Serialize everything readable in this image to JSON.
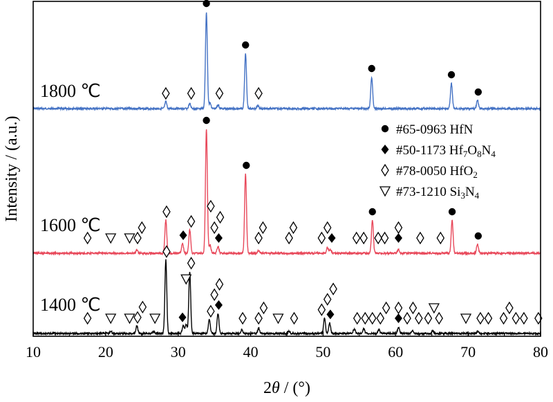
{
  "chart_data": {
    "type": "line",
    "xlabel_parts": [
      "2",
      "θ",
      " / (°)"
    ],
    "ylabel": "Intensity / (a.u.)",
    "xlim": [
      10,
      80
    ],
    "x_ticks": [
      10,
      20,
      30,
      40,
      50,
      60,
      70,
      80
    ],
    "grid": false,
    "legend_position": "right",
    "legend": [
      {
        "marker": "circle",
        "parts": [
          "#65-0963 HfN"
        ]
      },
      {
        "marker": "diamond-filled",
        "parts": [
          "#50-1173 Hf",
          "7",
          "O",
          "8",
          "N",
          "4"
        ]
      },
      {
        "marker": "diamond-open",
        "parts": [
          "#78-0050 HfO",
          "2"
        ]
      },
      {
        "marker": "triangle-down",
        "parts": [
          "#73-1210 Si",
          "3",
          "N",
          "4"
        ]
      }
    ],
    "series": [
      {
        "label": "1800 ℃",
        "color": "#4472c4",
        "baseline": 0,
        "peaks": [
          {
            "x": 28.3,
            "h": 10
          },
          {
            "x": 31.6,
            "h": 7
          },
          {
            "x": 33.9,
            "h": 140
          },
          {
            "x": 34.4,
            "h": 8
          },
          {
            "x": 35.5,
            "h": 5
          },
          {
            "x": 39.3,
            "h": 80
          },
          {
            "x": 41.0,
            "h": 4
          },
          {
            "x": 56.7,
            "h": 46
          },
          {
            "x": 67.7,
            "h": 37
          },
          {
            "x": 71.3,
            "h": 12
          }
        ],
        "markers": [
          {
            "x": 33.9,
            "type": "circle"
          },
          {
            "x": 39.3,
            "type": "circle"
          },
          {
            "x": 56.7,
            "type": "circle"
          },
          {
            "x": 67.7,
            "type": "circle"
          },
          {
            "x": 71.4,
            "type": "circle"
          },
          {
            "x": 28.3,
            "type": "diamond-open"
          },
          {
            "x": 31.8,
            "type": "diamond-open"
          },
          {
            "x": 35.7,
            "type": "diamond-open"
          },
          {
            "x": 41.1,
            "type": "diamond-open"
          }
        ]
      },
      {
        "label": "1600 ℃",
        "color": "#e8485a",
        "baseline": 0,
        "peaks": [
          {
            "x": 24.3,
            "h": 5
          },
          {
            "x": 28.3,
            "h": 48
          },
          {
            "x": 30.6,
            "h": 14
          },
          {
            "x": 31.6,
            "h": 34
          },
          {
            "x": 33.9,
            "h": 180
          },
          {
            "x": 34.4,
            "h": 12
          },
          {
            "x": 35.5,
            "h": 10
          },
          {
            "x": 39.3,
            "h": 115
          },
          {
            "x": 41.1,
            "h": 4
          },
          {
            "x": 50.6,
            "h": 8
          },
          {
            "x": 51.0,
            "h": 5
          },
          {
            "x": 56.8,
            "h": 48
          },
          {
            "x": 60.4,
            "h": 6
          },
          {
            "x": 67.8,
            "h": 48
          },
          {
            "x": 71.3,
            "h": 13
          }
        ],
        "markers": [
          {
            "x": 33.9,
            "type": "circle"
          },
          {
            "x": 39.4,
            "type": "circle"
          },
          {
            "x": 56.8,
            "type": "circle"
          },
          {
            "x": 67.8,
            "type": "circle"
          },
          {
            "x": 71.4,
            "type": "circle"
          },
          {
            "x": 30.7,
            "type": "diamond-filled"
          },
          {
            "x": 35.6,
            "type": "diamond-filled"
          },
          {
            "x": 51.2,
            "type": "diamond-filled"
          },
          {
            "x": 60.4,
            "type": "diamond-filled"
          },
          {
            "x": 17.5,
            "type": "diamond-open"
          },
          {
            "x": 24.4,
            "type": "diamond-open"
          },
          {
            "x": 25.0,
            "type": "diamond-open"
          },
          {
            "x": 28.4,
            "type": "diamond-open"
          },
          {
            "x": 31.8,
            "type": "diamond-open"
          },
          {
            "x": 34.5,
            "type": "diamond-open"
          },
          {
            "x": 35.0,
            "type": "diamond-open"
          },
          {
            "x": 35.8,
            "type": "diamond-open"
          },
          {
            "x": 41.1,
            "type": "diamond-open"
          },
          {
            "x": 41.7,
            "type": "diamond-open"
          },
          {
            "x": 45.3,
            "type": "diamond-open"
          },
          {
            "x": 45.9,
            "type": "diamond-open"
          },
          {
            "x": 49.8,
            "type": "diamond-open"
          },
          {
            "x": 50.6,
            "type": "diamond-open"
          },
          {
            "x": 54.6,
            "type": "diamond-open"
          },
          {
            "x": 55.6,
            "type": "diamond-open"
          },
          {
            "x": 57.6,
            "type": "diamond-open"
          },
          {
            "x": 58.5,
            "type": "diamond-open"
          },
          {
            "x": 60.4,
            "type": "diamond-open"
          },
          {
            "x": 63.4,
            "type": "diamond-open"
          },
          {
            "x": 66.2,
            "type": "diamond-open"
          },
          {
            "x": 20.7,
            "type": "triangle-down"
          },
          {
            "x": 23.3,
            "type": "triangle-down"
          }
        ]
      },
      {
        "label": "1400 ℃",
        "color": "#000000",
        "baseline": 0,
        "peaks": [
          {
            "x": 20.7,
            "h": 3
          },
          {
            "x": 24.3,
            "h": 10
          },
          {
            "x": 26.6,
            "h": 3
          },
          {
            "x": 28.3,
            "h": 95
          },
          {
            "x": 30.7,
            "h": 10
          },
          {
            "x": 31.1,
            "h": 12
          },
          {
            "x": 31.6,
            "h": 80
          },
          {
            "x": 34.3,
            "h": 18
          },
          {
            "x": 35.5,
            "h": 26
          },
          {
            "x": 38.8,
            "h": 5
          },
          {
            "x": 41.1,
            "h": 7
          },
          {
            "x": 45.3,
            "h": 3
          },
          {
            "x": 50.2,
            "h": 20
          },
          {
            "x": 50.9,
            "h": 14
          },
          {
            "x": 54.3,
            "h": 6
          },
          {
            "x": 55.6,
            "h": 6
          },
          {
            "x": 57.7,
            "h": 5
          },
          {
            "x": 60.4,
            "h": 8
          },
          {
            "x": 62.3,
            "h": 4
          },
          {
            "x": 65.1,
            "h": 3
          },
          {
            "x": 71.3,
            "h": 3
          }
        ],
        "markers": [
          {
            "x": 30.6,
            "type": "diamond-filled"
          },
          {
            "x": 35.6,
            "type": "diamond-filled"
          },
          {
            "x": 51.0,
            "type": "diamond-filled"
          },
          {
            "x": 60.4,
            "type": "diamond-filled"
          },
          {
            "x": 17.5,
            "type": "diamond-open"
          },
          {
            "x": 24.4,
            "type": "diamond-open"
          },
          {
            "x": 25.1,
            "type": "diamond-open"
          },
          {
            "x": 28.4,
            "type": "diamond-open"
          },
          {
            "x": 31.8,
            "type": "diamond-open"
          },
          {
            "x": 34.5,
            "type": "diamond-open"
          },
          {
            "x": 35.0,
            "type": "diamond-open"
          },
          {
            "x": 35.7,
            "type": "diamond-open"
          },
          {
            "x": 38.9,
            "type": "diamond-open"
          },
          {
            "x": 41.1,
            "type": "diamond-open"
          },
          {
            "x": 41.8,
            "type": "diamond-open"
          },
          {
            "x": 46.0,
            "type": "diamond-open"
          },
          {
            "x": 49.8,
            "type": "diamond-open"
          },
          {
            "x": 50.6,
            "type": "diamond-open"
          },
          {
            "x": 51.4,
            "type": "diamond-open"
          },
          {
            "x": 54.7,
            "type": "diamond-open"
          },
          {
            "x": 55.8,
            "type": "diamond-open"
          },
          {
            "x": 56.8,
            "type": "diamond-open"
          },
          {
            "x": 57.9,
            "type": "diamond-open"
          },
          {
            "x": 58.7,
            "type": "diamond-open"
          },
          {
            "x": 60.4,
            "type": "diamond-open"
          },
          {
            "x": 61.6,
            "type": "diamond-open"
          },
          {
            "x": 62.4,
            "type": "diamond-open"
          },
          {
            "x": 63.2,
            "type": "diamond-open"
          },
          {
            "x": 64.5,
            "type": "diamond-open"
          },
          {
            "x": 66.0,
            "type": "diamond-open"
          },
          {
            "x": 71.7,
            "type": "diamond-open"
          },
          {
            "x": 72.8,
            "type": "diamond-open"
          },
          {
            "x": 74.9,
            "type": "diamond-open"
          },
          {
            "x": 75.7,
            "type": "diamond-open"
          },
          {
            "x": 76.6,
            "type": "diamond-open"
          },
          {
            "x": 77.7,
            "type": "diamond-open"
          },
          {
            "x": 79.7,
            "type": "diamond-open"
          },
          {
            "x": 20.7,
            "type": "triangle-down"
          },
          {
            "x": 23.3,
            "type": "triangle-down"
          },
          {
            "x": 26.8,
            "type": "triangle-down"
          },
          {
            "x": 31.1,
            "type": "triangle-down"
          },
          {
            "x": 43.8,
            "type": "triangle-down"
          },
          {
            "x": 65.3,
            "type": "triangle-down"
          },
          {
            "x": 69.7,
            "type": "triangle-down"
          }
        ]
      }
    ]
  }
}
